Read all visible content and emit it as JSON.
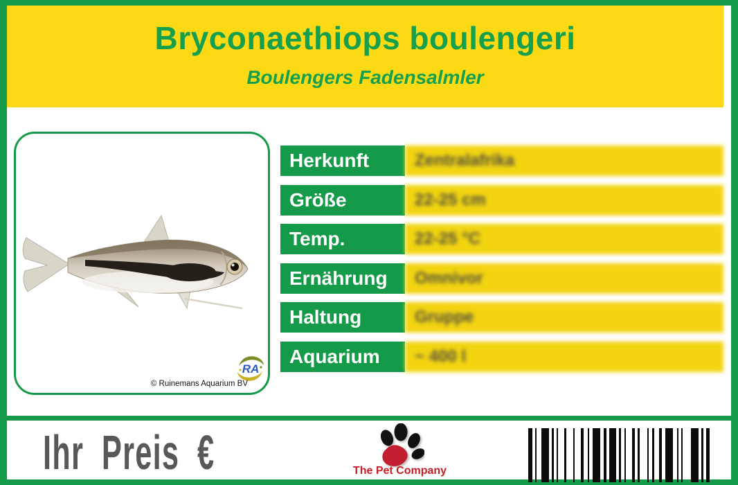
{
  "header": {
    "title": "Bryconaethiops boulengeri",
    "subtitle": "Boulengers Fadensalmler"
  },
  "info_table": {
    "rows": [
      {
        "label": "Herkunft",
        "value": "Zentralafrika"
      },
      {
        "label": "Größe",
        "value": "22-25 cm"
      },
      {
        "label": "Temp.",
        "value": "22-25 °C"
      },
      {
        "label": "Ernährung",
        "value": "Omnivor"
      },
      {
        "label": "Haltung",
        "value": "Gruppe"
      },
      {
        "label": "Aquarium",
        "value": "~ 400 l"
      }
    ]
  },
  "fish_panel": {
    "credit": "© Ruinemans Aquarium BV",
    "logo_monogram": "RA"
  },
  "footer": {
    "price_label": "Ihr Preis €",
    "brand_name": "The Pet Company"
  },
  "colors": {
    "green": "#149A48",
    "header_yellow": "#FBDA15",
    "cell_yellow": "#F2D411",
    "title_green": "#16A04E",
    "price_gray": "#58585A",
    "brand_red": "#C52027"
  },
  "barcode": {
    "pattern": [
      6,
      4,
      2,
      7,
      11,
      4,
      3,
      4,
      2,
      9,
      3,
      10,
      2,
      9,
      4,
      6,
      2,
      5,
      11,
      5,
      4,
      4,
      10,
      4,
      3,
      5,
      2,
      9,
      4,
      4,
      3,
      11,
      2,
      5,
      3,
      7,
      4,
      5,
      11,
      6,
      2,
      4,
      2,
      12,
      11,
      4,
      3,
      4,
      5
    ]
  }
}
